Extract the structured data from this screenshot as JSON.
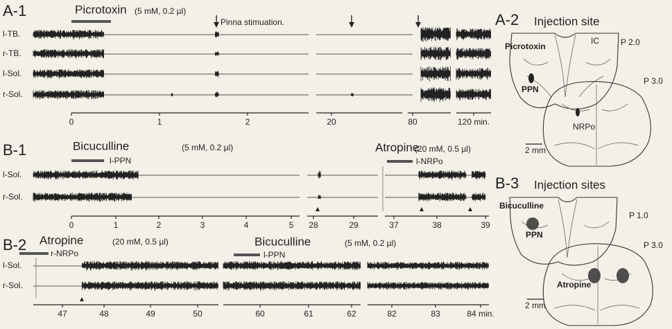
{
  "panels": {
    "a1": {
      "label": "A-1",
      "drug": "Picrotoxin",
      "dose": "(5 mM, 0.2 µl)",
      "annotation": "Pinna stimuation.",
      "channels": [
        "l-TB.",
        "r-TB.",
        "l-Sol.",
        "r-Sol."
      ],
      "ticks": [
        0,
        1,
        2,
        20,
        80,
        "120 min."
      ]
    },
    "a2": {
      "label": "A-2",
      "title": "Injection site",
      "drug": "Picrotoxin",
      "ic": "IC",
      "nucleus1": "PPN",
      "nucleus2": "NRPo",
      "level1": "P 2.0",
      "level2": "P 3.0",
      "scale": "2 mm"
    },
    "b1": {
      "label": "B-1",
      "drug": "Bicuculline",
      "dose": "(5 mM, 0.2 µl)",
      "site": "l-PPN",
      "drug2": "Atropine",
      "dose2": "(20 mM, 0.5 µl)",
      "site2": "l-NRPo",
      "channels": [
        "l-Sol.",
        "r-Sol."
      ],
      "ticks": [
        0,
        1,
        2,
        3,
        4,
        5,
        28,
        29,
        37,
        38,
        39
      ]
    },
    "b2": {
      "label": "B-2",
      "drug": "Atropine",
      "dose": "(20 mM, 0.5 µl)",
      "site": "r-NRPo",
      "drug2": "Bicuculline",
      "dose2": "(5 mM, 0.2 µl)",
      "site2": "l-PPN",
      "channels": [
        "l-Sol.",
        "r-Sol."
      ],
      "ticks": [
        47,
        48,
        49,
        50,
        60,
        61,
        62,
        82,
        83,
        "84 min."
      ]
    },
    "b3": {
      "label": "B-3",
      "title": "Injection sites",
      "drug1": "Bicuculline",
      "nucleus1": "PPN",
      "drug2": "Atropine",
      "level1": "P 1.0",
      "level2": "P 3.0",
      "scale": "2 mm"
    }
  }
}
